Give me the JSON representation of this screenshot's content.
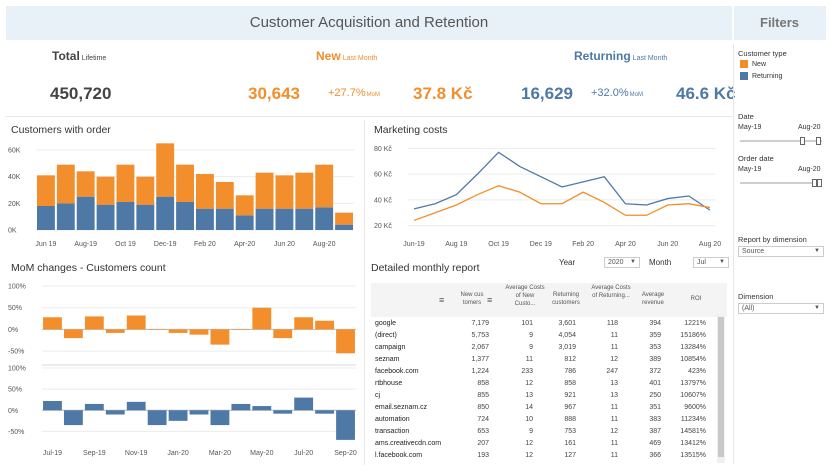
{
  "header": {
    "title": "Customer Acquisition and Retention",
    "filters_title": "Filters"
  },
  "kpis": {
    "total": {
      "label": "Total",
      "sub": "Lifetime",
      "value": "450,720"
    },
    "new": {
      "label": "New",
      "sub": "Last Month",
      "value": "30,643",
      "change": "+27.7%",
      "change_unit": "MoM",
      "avg": "37.8 Kč"
    },
    "returning": {
      "label": "Returning",
      "sub": "Last Month",
      "value": "16,629",
      "change": "+32.0%",
      "change_unit": "MoM",
      "avg": "46.6 Kč"
    }
  },
  "colors": {
    "new": "#f28e2b",
    "returning": "#4e79a7"
  },
  "sections": {
    "customers_with_order": "Customers with order",
    "marketing_costs": "Marketing costs",
    "mom_changes": "MoM changes - Customers count",
    "detailed_report": "Detailed monthly report"
  },
  "report_controls": {
    "year_label": "Year",
    "year_value": "2020",
    "month_label": "Month",
    "month_value": "Jul"
  },
  "chart_data": [
    {
      "type": "bar",
      "title": "Customers with order",
      "stacked": true,
      "categories": [
        "Jun-19",
        "Jul-19",
        "Aug-19",
        "Sep-19",
        "Oct-19",
        "Nov-19",
        "Dec-19",
        "Jan-20",
        "Feb-20",
        "Mar-20",
        "Apr-20",
        "May-20",
        "Jun-20",
        "Jul-20",
        "Aug-20",
        "Sep-20"
      ],
      "x_tick_labels": [
        "Jun 19",
        "Aug-19",
        "Oct 19",
        "Dec-19",
        "Feb 20",
        "Apr-20",
        "Jun 20",
        "Aug-20"
      ],
      "y_tick_labels": [
        "60K",
        "40K",
        "20K",
        "0K"
      ],
      "ylim": [
        0,
        66000
      ],
      "series": [
        {
          "name": "Returning",
          "values": [
            18000,
            20000,
            25000,
            19000,
            21000,
            19000,
            25000,
            21000,
            16000,
            16000,
            11000,
            16000,
            16000,
            16000,
            17000,
            4000
          ]
        },
        {
          "name": "New",
          "values": [
            23000,
            29000,
            19000,
            21000,
            28000,
            21000,
            40000,
            28000,
            26000,
            20000,
            15000,
            27000,
            25000,
            27000,
            32000,
            9000
          ]
        }
      ]
    },
    {
      "type": "line",
      "title": "Marketing costs",
      "categories": [
        "Jun-19",
        "Jul-19",
        "Aug-19",
        "Sep-19",
        "Oct-19",
        "Nov-19",
        "Dec-19",
        "Jan-20",
        "Feb-20",
        "Mar-20",
        "Apr-20",
        "May-20",
        "Jun-20",
        "Jul-20",
        "Aug-20"
      ],
      "x_tick_labels": [
        "Jun-19",
        "Aug 19",
        "Oct 19",
        "Dec 19",
        "Feb 20",
        "Apr 20",
        "Jun 20",
        "Aug 20"
      ],
      "y_tick_labels": [
        "80 Kč",
        "60 Kč",
        "40 Kč",
        "20 Kč"
      ],
      "ylim": [
        15,
        85
      ],
      "series": [
        {
          "name": "Returning",
          "values": [
            33,
            37,
            44,
            60,
            77,
            66,
            58,
            50,
            54,
            58,
            37,
            36,
            41,
            43,
            32
          ]
        },
        {
          "name": "New",
          "values": [
            24,
            30,
            36,
            44,
            51,
            46,
            37,
            37,
            46,
            38,
            28,
            28,
            36,
            37,
            34
          ]
        }
      ]
    },
    {
      "type": "bar",
      "title": "MoM changes - Customers count",
      "panel": "New",
      "categories": [
        "Jul-19",
        "Aug-19",
        "Sep-19",
        "Oct-19",
        "Nov-19",
        "Dec-19",
        "Jan-20",
        "Feb-20",
        "Mar-20",
        "Apr-20",
        "May-20",
        "Jun-20",
        "Jul-20",
        "Aug-20",
        "Sep-20"
      ],
      "y_tick_labels": [
        "100%",
        "50%",
        "0%",
        "-50%"
      ],
      "ylim": [
        -75,
        100
      ],
      "values": [
        28,
        -20,
        30,
        -8,
        32,
        0,
        -8,
        -12,
        -35,
        0,
        50,
        -20,
        28,
        20,
        -55
      ]
    },
    {
      "type": "bar",
      "title": "",
      "panel": "Returning",
      "categories": [
        "Jul-19",
        "Aug-19",
        "Sep-19",
        "Oct-19",
        "Nov-19",
        "Dec-19",
        "Jan-20",
        "Feb-20",
        "Mar-20",
        "Apr-20",
        "May-20",
        "Jun-20",
        "Jul-20",
        "Aug-20",
        "Sep-20"
      ],
      "x_tick_labels": [
        "Jul-19",
        "Sep-19",
        "Nov-19",
        "Jan-20",
        "Mar-20",
        "May-20",
        "Jul-20",
        "Sep-20"
      ],
      "y_tick_labels": [
        "100%",
        "50%",
        "0%",
        "-50%"
      ],
      "ylim": [
        -75,
        100
      ],
      "values": [
        22,
        -35,
        15,
        -10,
        20,
        -35,
        -25,
        -10,
        -35,
        15,
        10,
        -8,
        30,
        -8,
        -70
      ]
    }
  ],
  "report": {
    "headers": [
      "New cus tomers",
      "Average Costs of New Custo...",
      "Returning customers",
      "Average Costs of Returning...",
      "Average revenue",
      "ROI"
    ],
    "rows": [
      [
        "google",
        "7,179",
        "101",
        "3,601",
        "118",
        "394",
        "1221%"
      ],
      [
        "(direct)",
        "5,753",
        "9",
        "4,054",
        "11",
        "359",
        "15186%"
      ],
      [
        "campaign",
        "2,067",
        "9",
        "3,019",
        "11",
        "353",
        "13284%"
      ],
      [
        "seznam",
        "1,377",
        "11",
        "812",
        "12",
        "389",
        "10854%"
      ],
      [
        "facebook.com",
        "1,224",
        "233",
        "786",
        "247",
        "372",
        "423%"
      ],
      [
        "rtbhouse",
        "858",
        "12",
        "858",
        "13",
        "401",
        "13797%"
      ],
      [
        "cj",
        "855",
        "13",
        "921",
        "13",
        "250",
        "10607%"
      ],
      [
        "email.seznam.cz",
        "850",
        "14",
        "967",
        "11",
        "351",
        "9600%"
      ],
      [
        "automation",
        "724",
        "10",
        "888",
        "11",
        "383",
        "11234%"
      ],
      [
        "transaction",
        "653",
        "9",
        "753",
        "12",
        "387",
        "14581%"
      ],
      [
        "ams.creativecdn.com",
        "207",
        "12",
        "161",
        "11",
        "469",
        "13412%"
      ],
      [
        "l.facebook.com",
        "193",
        "12",
        "127",
        "11",
        "366",
        "13515%"
      ]
    ]
  },
  "filters": {
    "customer_type": {
      "label": "Customer type",
      "items": [
        "New",
        "Returning"
      ]
    },
    "date": {
      "label": "Date",
      "min": "May-19",
      "max": "Aug-20"
    },
    "order_date": {
      "label": "Order date",
      "min": "May-19",
      "max": "Aug-20"
    },
    "report_by_dimension": {
      "label": "Report by dimension",
      "value": "Source"
    },
    "dimension": {
      "label": "Dimension",
      "value": "(All)"
    }
  }
}
